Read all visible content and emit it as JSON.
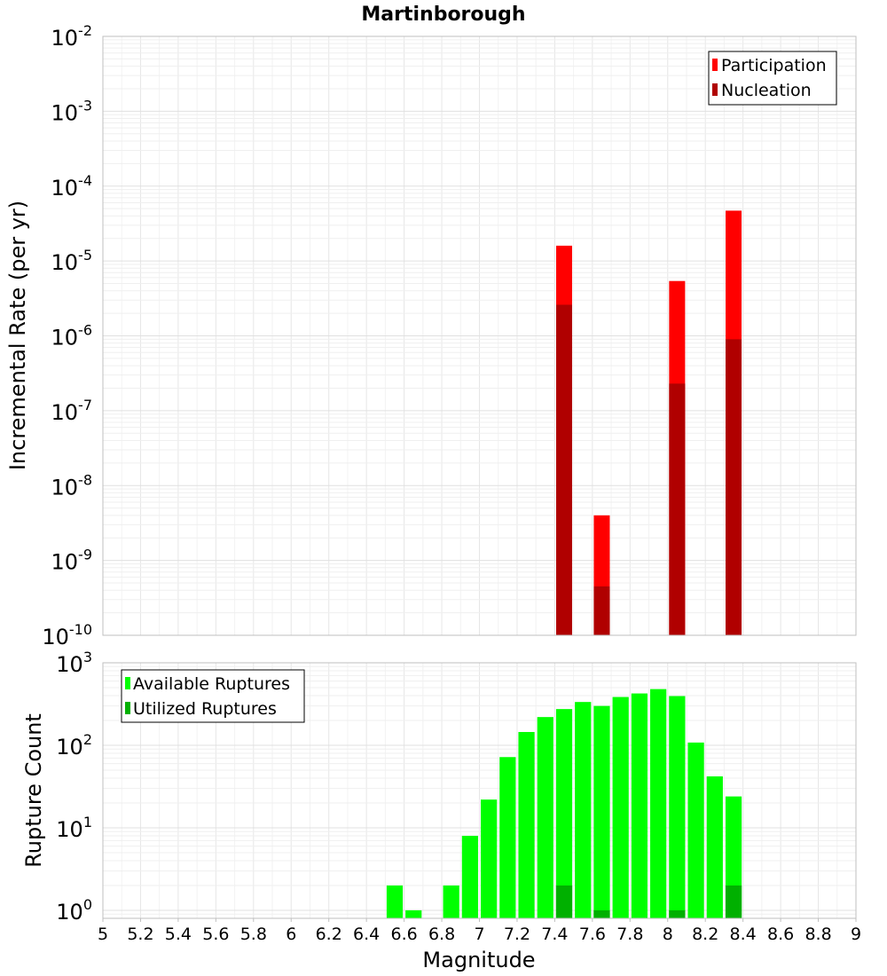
{
  "chart_data": [
    {
      "type": "bar",
      "title": "Martinborough",
      "xlabel": "",
      "ylabel": "Incremental Rate (per yr)",
      "yscale": "log",
      "ylim": [
        1e-10,
        0.01
      ],
      "xlim": [
        5,
        9
      ],
      "grid": true,
      "legend_position": "top-right",
      "y_tick_exponents": [
        "-10",
        "-9",
        "-8",
        "-7",
        "-6",
        "-5",
        "-4",
        "-3",
        "-2"
      ],
      "x": [
        7.45,
        7.65,
        8.05,
        8.35
      ],
      "series": [
        {
          "name": "Participation",
          "color": "#ff0000",
          "values": [
            1.6e-05,
            4e-09,
            5.4e-06,
            4.7e-05
          ]
        },
        {
          "name": "Nucleation",
          "color": "#b00000",
          "values": [
            2.6e-06,
            4.5e-10,
            2.3e-07,
            9e-07
          ]
        }
      ]
    },
    {
      "type": "bar",
      "title": "",
      "xlabel": "Magnitude",
      "ylabel": "Rupture Count",
      "yscale": "log",
      "ylim": [
        0.8,
        1000
      ],
      "xlim": [
        5,
        9
      ],
      "grid": true,
      "legend_position": "top-left",
      "y_tick_exponents": [
        "0",
        "1",
        "2",
        "3"
      ],
      "x_ticks": [
        "5",
        "5.2",
        "5.4",
        "5.6",
        "5.8",
        "6",
        "6.2",
        "6.4",
        "6.6",
        "6.8",
        "7",
        "7.2",
        "7.4",
        "7.6",
        "7.8",
        "8",
        "8.2",
        "8.4",
        "8.6",
        "8.8",
        "9"
      ],
      "x": [
        6.55,
        6.65,
        6.85,
        6.95,
        7.05,
        7.15,
        7.25,
        7.35,
        7.45,
        7.55,
        7.65,
        7.75,
        7.85,
        7.95,
        8.05,
        8.15,
        8.25,
        8.35
      ],
      "series": [
        {
          "name": "Available Ruptures",
          "color": "#00ff00",
          "values": [
            2,
            1,
            2,
            8,
            22,
            72,
            145,
            220,
            275,
            335,
            300,
            385,
            425,
            480,
            395,
            108,
            42,
            24
          ]
        },
        {
          "name": "Utilized Ruptures",
          "color": "#00b000",
          "values": [
            null,
            null,
            null,
            null,
            null,
            null,
            null,
            null,
            2,
            null,
            1,
            null,
            null,
            null,
            1,
            null,
            null,
            2
          ]
        }
      ]
    }
  ]
}
